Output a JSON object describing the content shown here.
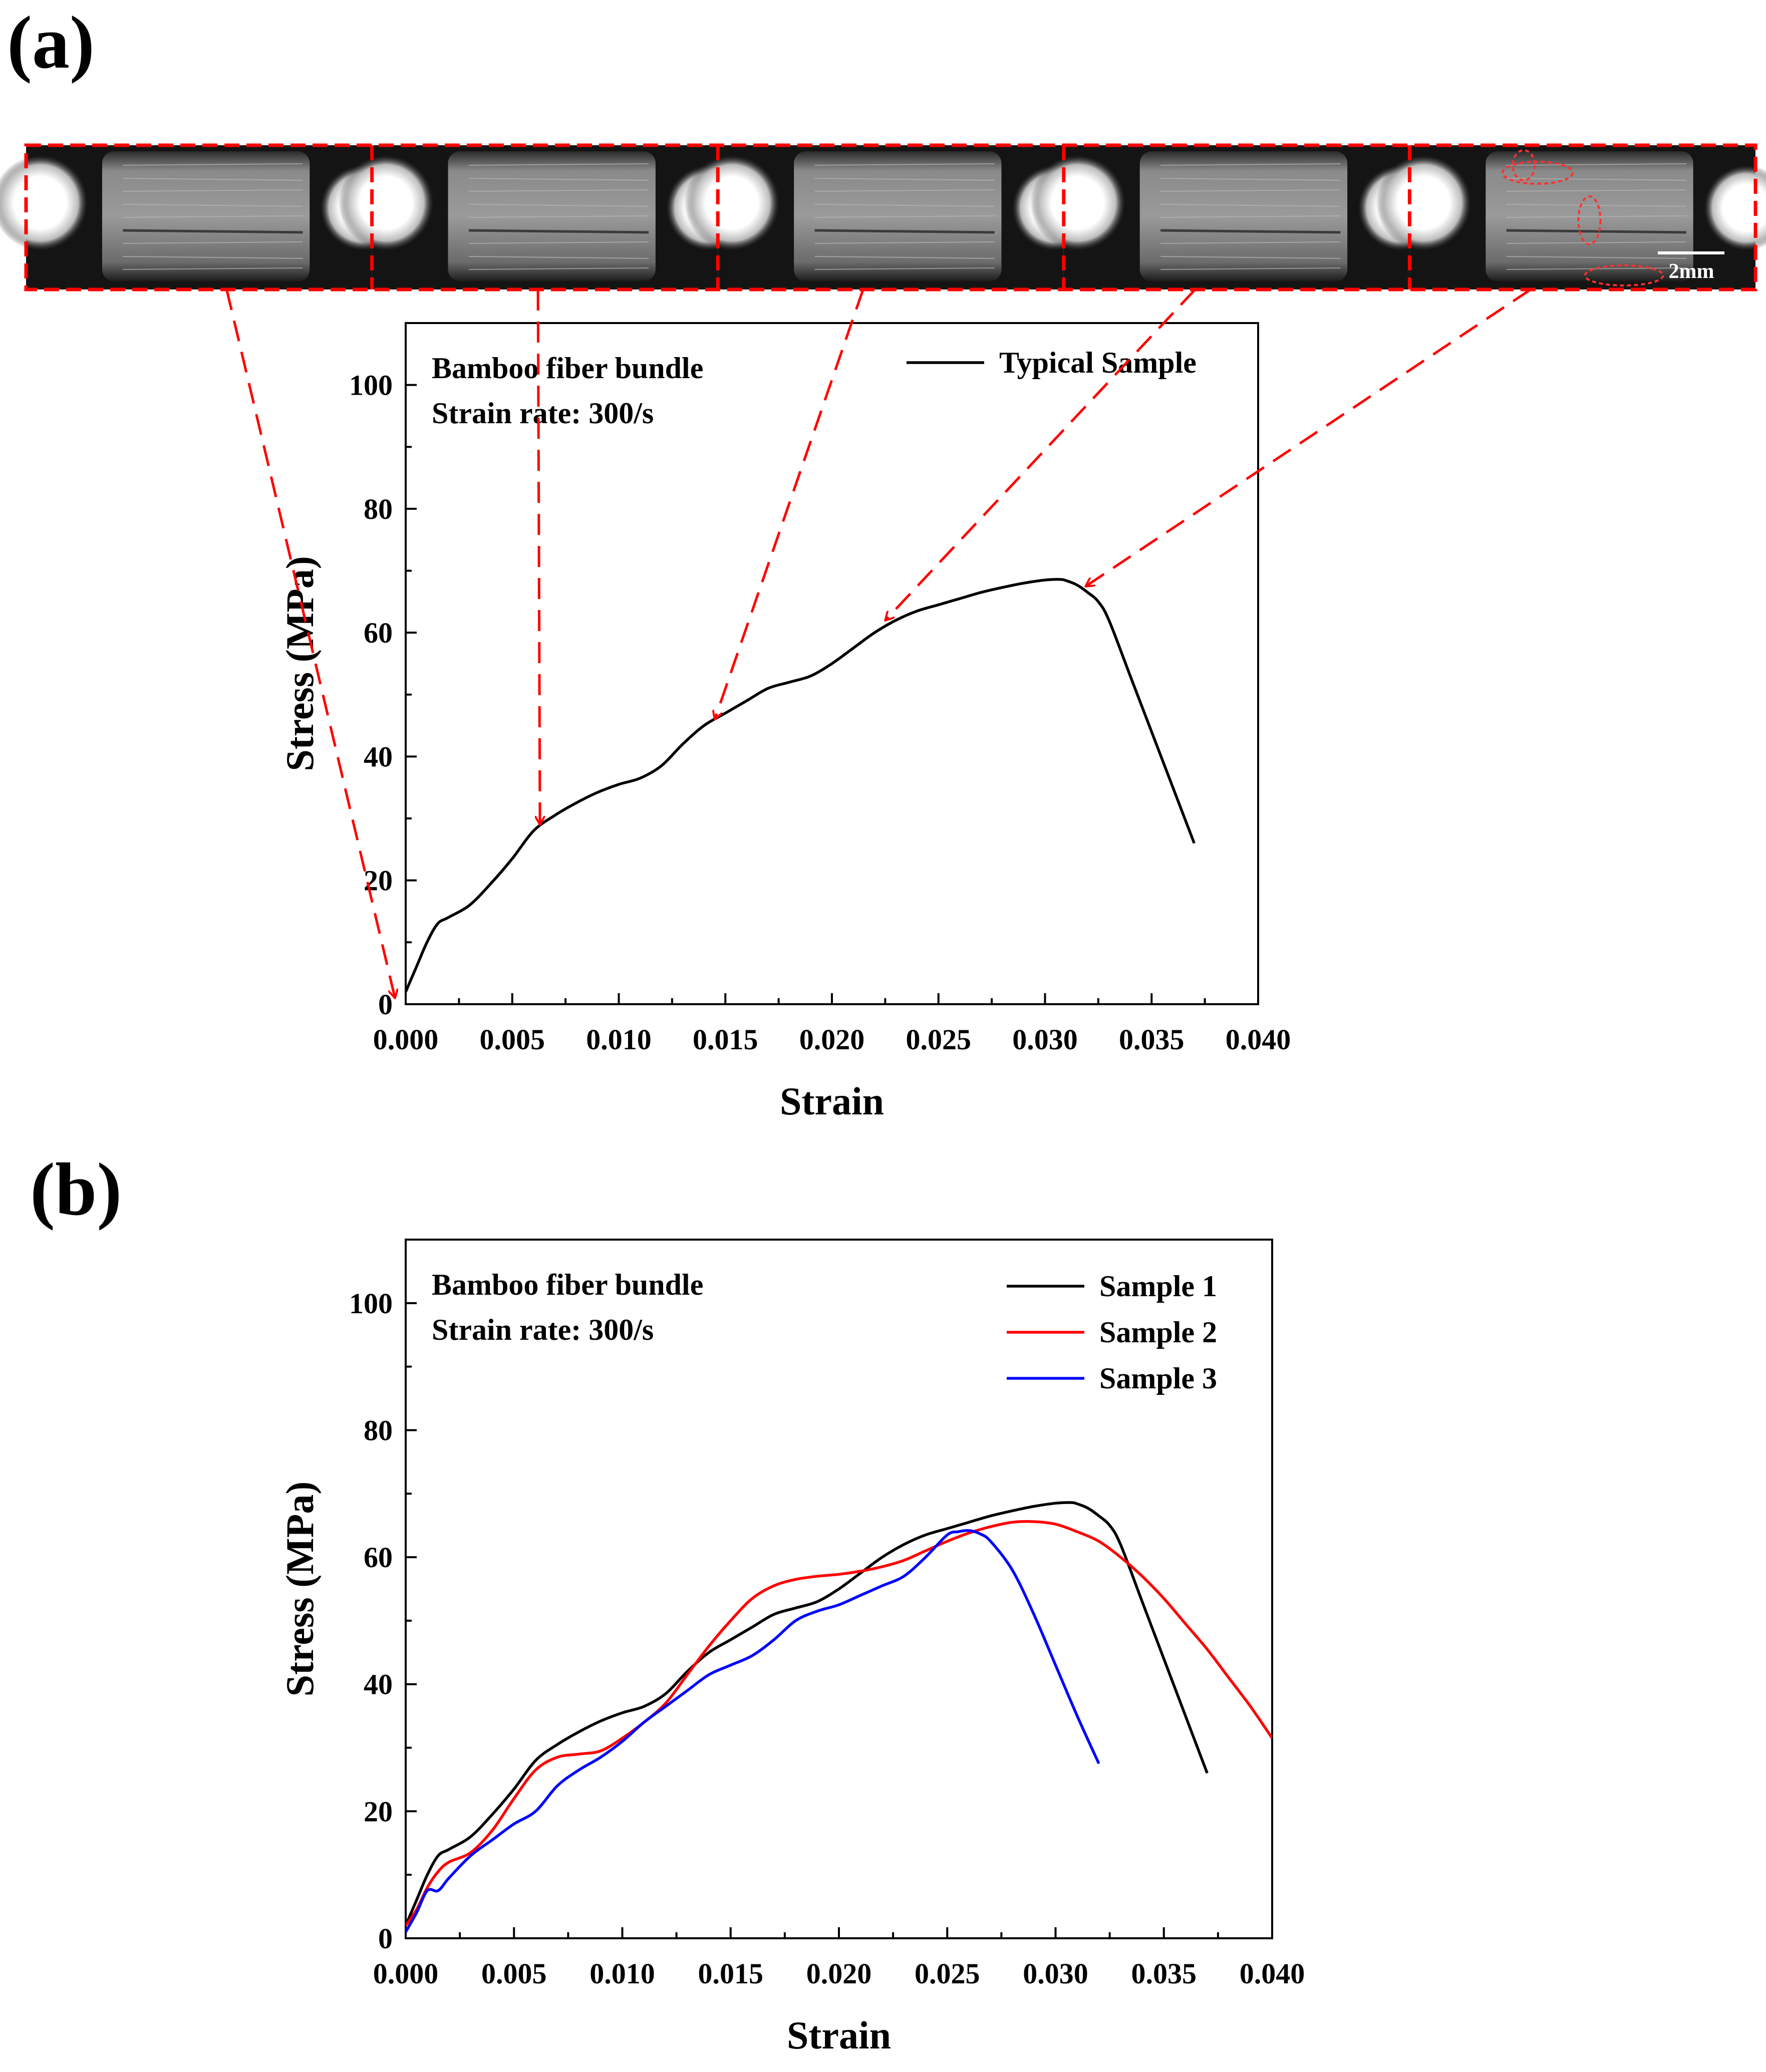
{
  "panel_a": {
    "label": "(a)",
    "scale_bar_label": "2mm",
    "frame_count": 5,
    "chart_data": {
      "type": "line",
      "xlabel": "Strain",
      "ylabel": "Stress (MPa)",
      "xlim": [
        0,
        0.04
      ],
      "ylim": [
        0,
        110
      ],
      "xticks": [
        0.0,
        0.005,
        0.01,
        0.015,
        0.02,
        0.025,
        0.03,
        0.035,
        0.04
      ],
      "xtick_labels": [
        "0.000",
        "0.005",
        "0.010",
        "0.015",
        "0.020",
        "0.025",
        "0.030",
        "0.035",
        "0.040"
      ],
      "yticks": [
        0,
        20,
        40,
        60,
        80,
        100
      ],
      "ytick_labels": [
        "0",
        "20",
        "40",
        "60",
        "80",
        "100"
      ],
      "annotation_lines": [
        "Bamboo fiber bundle",
        "Strain rate: 300/s"
      ],
      "legend_position": "top-right",
      "series": [
        {
          "name": "Typical Sample",
          "color": "#000000",
          "x": [
            0.0,
            0.0005,
            0.001,
            0.0015,
            0.002,
            0.003,
            0.004,
            0.005,
            0.006,
            0.007,
            0.008,
            0.009,
            0.01,
            0.011,
            0.012,
            0.013,
            0.014,
            0.015,
            0.016,
            0.017,
            0.018,
            0.019,
            0.02,
            0.021,
            0.022,
            0.023,
            0.024,
            0.025,
            0.026,
            0.027,
            0.028,
            0.029,
            0.03,
            0.0307,
            0.031,
            0.0315,
            0.032,
            0.0325,
            0.033,
            0.034,
            0.035,
            0.036,
            0.037
          ],
          "y": [
            2,
            6,
            10,
            13,
            14,
            16,
            19.5,
            23.5,
            28,
            30.5,
            32.5,
            34.2,
            35.5,
            36.5,
            38.5,
            42,
            45,
            47,
            49,
            51,
            52,
            53,
            55,
            57.5,
            60,
            62,
            63.5,
            64.5,
            65.5,
            66.5,
            67.3,
            68,
            68.5,
            68.6,
            68.4,
            67.7,
            66.5,
            65,
            62,
            53,
            44,
            35,
            26
          ]
        }
      ],
      "arrow_targets": [
        {
          "x": -0.0005,
          "y": 0
        },
        {
          "x": 0.0063,
          "y": 28
        },
        {
          "x": 0.0145,
          "y": 45
        },
        {
          "x": 0.0225,
          "y": 61
        },
        {
          "x": 0.0319,
          "y": 66.5
        }
      ]
    }
  },
  "panel_b": {
    "label": "(b)",
    "chart_data": {
      "type": "line",
      "xlabel": "Strain",
      "ylabel": "Stress (MPa)",
      "xlim": [
        0,
        0.04
      ],
      "ylim": [
        0,
        110
      ],
      "xticks": [
        0.0,
        0.005,
        0.01,
        0.015,
        0.02,
        0.025,
        0.03,
        0.035,
        0.04
      ],
      "xtick_labels": [
        "0.000",
        "0.005",
        "0.010",
        "0.015",
        "0.020",
        "0.025",
        "0.030",
        "0.035",
        "0.040"
      ],
      "yticks": [
        0,
        20,
        40,
        60,
        80,
        100
      ],
      "ytick_labels": [
        "0",
        "20",
        "40",
        "60",
        "80",
        "100"
      ],
      "annotation_lines": [
        "Bamboo fiber bundle",
        "Strain rate: 300/s"
      ],
      "legend_position": "top-right",
      "series": [
        {
          "name": "Sample 1",
          "color": "#000000",
          "x": [
            0.0,
            0.0005,
            0.001,
            0.0015,
            0.002,
            0.003,
            0.004,
            0.005,
            0.006,
            0.007,
            0.008,
            0.009,
            0.01,
            0.011,
            0.012,
            0.013,
            0.014,
            0.015,
            0.016,
            0.017,
            0.018,
            0.019,
            0.02,
            0.021,
            0.022,
            0.023,
            0.024,
            0.025,
            0.026,
            0.027,
            0.028,
            0.029,
            0.03,
            0.0307,
            0.031,
            0.0315,
            0.032,
            0.0325,
            0.033,
            0.034,
            0.035,
            0.036,
            0.037
          ],
          "y": [
            2,
            6,
            10,
            13,
            14,
            16,
            19.5,
            23.5,
            28,
            30.5,
            32.5,
            34.2,
            35.5,
            36.5,
            38.5,
            42,
            45,
            47,
            49,
            51,
            52,
            53,
            55,
            57.5,
            60,
            62,
            63.5,
            64.5,
            65.5,
            66.5,
            67.3,
            68,
            68.5,
            68.6,
            68.4,
            67.7,
            66.5,
            65,
            62,
            53,
            44,
            35,
            26
          ]
        },
        {
          "name": "Sample 2",
          "color": "#ff0000",
          "x": [
            0.0,
            0.0005,
            0.001,
            0.0015,
            0.002,
            0.003,
            0.004,
            0.005,
            0.006,
            0.007,
            0.008,
            0.009,
            0.01,
            0.011,
            0.012,
            0.013,
            0.014,
            0.015,
            0.016,
            0.017,
            0.018,
            0.019,
            0.02,
            0.021,
            0.022,
            0.023,
            0.024,
            0.025,
            0.026,
            0.027,
            0.028,
            0.029,
            0.03,
            0.031,
            0.032,
            0.033,
            0.034,
            0.035,
            0.036,
            0.037,
            0.038,
            0.039,
            0.04
          ],
          "y": [
            2,
            4.5,
            8,
            10.5,
            12,
            13.5,
            17,
            22,
            26.5,
            28.5,
            29,
            29.5,
            31.5,
            34,
            37,
            41.5,
            46,
            50,
            53.5,
            55.5,
            56.5,
            57,
            57.3,
            57.8,
            58.5,
            59.5,
            61,
            62.5,
            63.8,
            64.8,
            65.5,
            65.6,
            65.2,
            64,
            62.5,
            60,
            57,
            53.5,
            49.5,
            45.5,
            41,
            36.5,
            31.5
          ]
        },
        {
          "name": "Sample 3",
          "color": "#0000ff",
          "x": [
            0.0,
            0.0005,
            0.001,
            0.0015,
            0.002,
            0.003,
            0.004,
            0.005,
            0.006,
            0.007,
            0.008,
            0.009,
            0.01,
            0.011,
            0.012,
            0.013,
            0.014,
            0.015,
            0.016,
            0.017,
            0.018,
            0.019,
            0.02,
            0.021,
            0.022,
            0.023,
            0.024,
            0.025,
            0.0255,
            0.026,
            0.0265,
            0.027,
            0.028,
            0.029,
            0.03,
            0.031,
            0.032
          ],
          "y": [
            1,
            4,
            7.5,
            7.5,
            9.5,
            13,
            15.5,
            18,
            20,
            24,
            26.5,
            28.5,
            31,
            34,
            36.5,
            39,
            41.5,
            43,
            44.5,
            47,
            50,
            51.5,
            52.5,
            54,
            55.5,
            57,
            60,
            63.5,
            64,
            64.2,
            63.7,
            62.5,
            58,
            51,
            43,
            35,
            27.5
          ]
        }
      ]
    }
  }
}
